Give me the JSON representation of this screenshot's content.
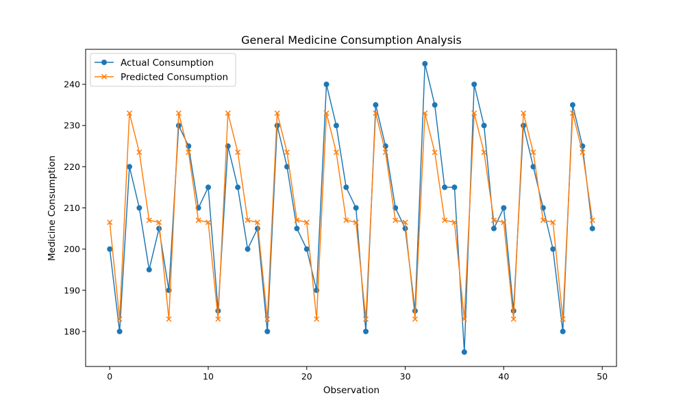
{
  "chart_data": {
    "type": "line",
    "title": "General Medicine Consumption Analysis",
    "xlabel": "Observation",
    "ylabel": "Medicine Consumption",
    "xlim": [
      -2.45,
      51.45
    ],
    "ylim": [
      171.5,
      248.5
    ],
    "xticks": [
      0,
      10,
      20,
      30,
      40,
      50
    ],
    "yticks": [
      180,
      190,
      200,
      210,
      220,
      230,
      240
    ],
    "grid": false,
    "legend_position": "top-left",
    "x": [
      0,
      1,
      2,
      3,
      4,
      5,
      6,
      7,
      8,
      9,
      10,
      11,
      12,
      13,
      14,
      15,
      16,
      17,
      18,
      19,
      20,
      21,
      22,
      23,
      24,
      25,
      26,
      27,
      28,
      29,
      30,
      31,
      32,
      33,
      34,
      35,
      36,
      37,
      38,
      39,
      40,
      41,
      42,
      43,
      44,
      45,
      46,
      47,
      48,
      49
    ],
    "series": [
      {
        "name": "Actual Consumption",
        "color": "#1f77b4",
        "marker": "circle",
        "values": [
          200,
          180,
          220,
          210,
          195,
          205,
          190,
          230,
          225,
          210,
          215,
          185,
          225,
          215,
          200,
          205,
          180,
          230,
          220,
          205,
          200,
          190,
          240,
          230,
          215,
          210,
          180,
          235,
          225,
          210,
          205,
          185,
          245,
          235,
          215,
          215,
          175,
          240,
          230,
          205,
          210,
          185,
          230,
          220,
          210,
          200,
          180,
          235,
          225,
          205
        ]
      },
      {
        "name": "Predicted Consumption",
        "color": "#ff7f0e",
        "marker": "x",
        "values": [
          206.5,
          183,
          233,
          223.5,
          207,
          206.5,
          183,
          233,
          223.5,
          207,
          206.5,
          183,
          233,
          223.5,
          207,
          206.5,
          183,
          233,
          223.5,
          207,
          206.5,
          183,
          233,
          223.5,
          207,
          206.5,
          183,
          233,
          223.5,
          207,
          206.5,
          183,
          233,
          223.5,
          207,
          206.5,
          183,
          233,
          223.5,
          207,
          206.5,
          183,
          233,
          223.5,
          207,
          206.5,
          183,
          233,
          223.5,
          207
        ]
      }
    ]
  }
}
